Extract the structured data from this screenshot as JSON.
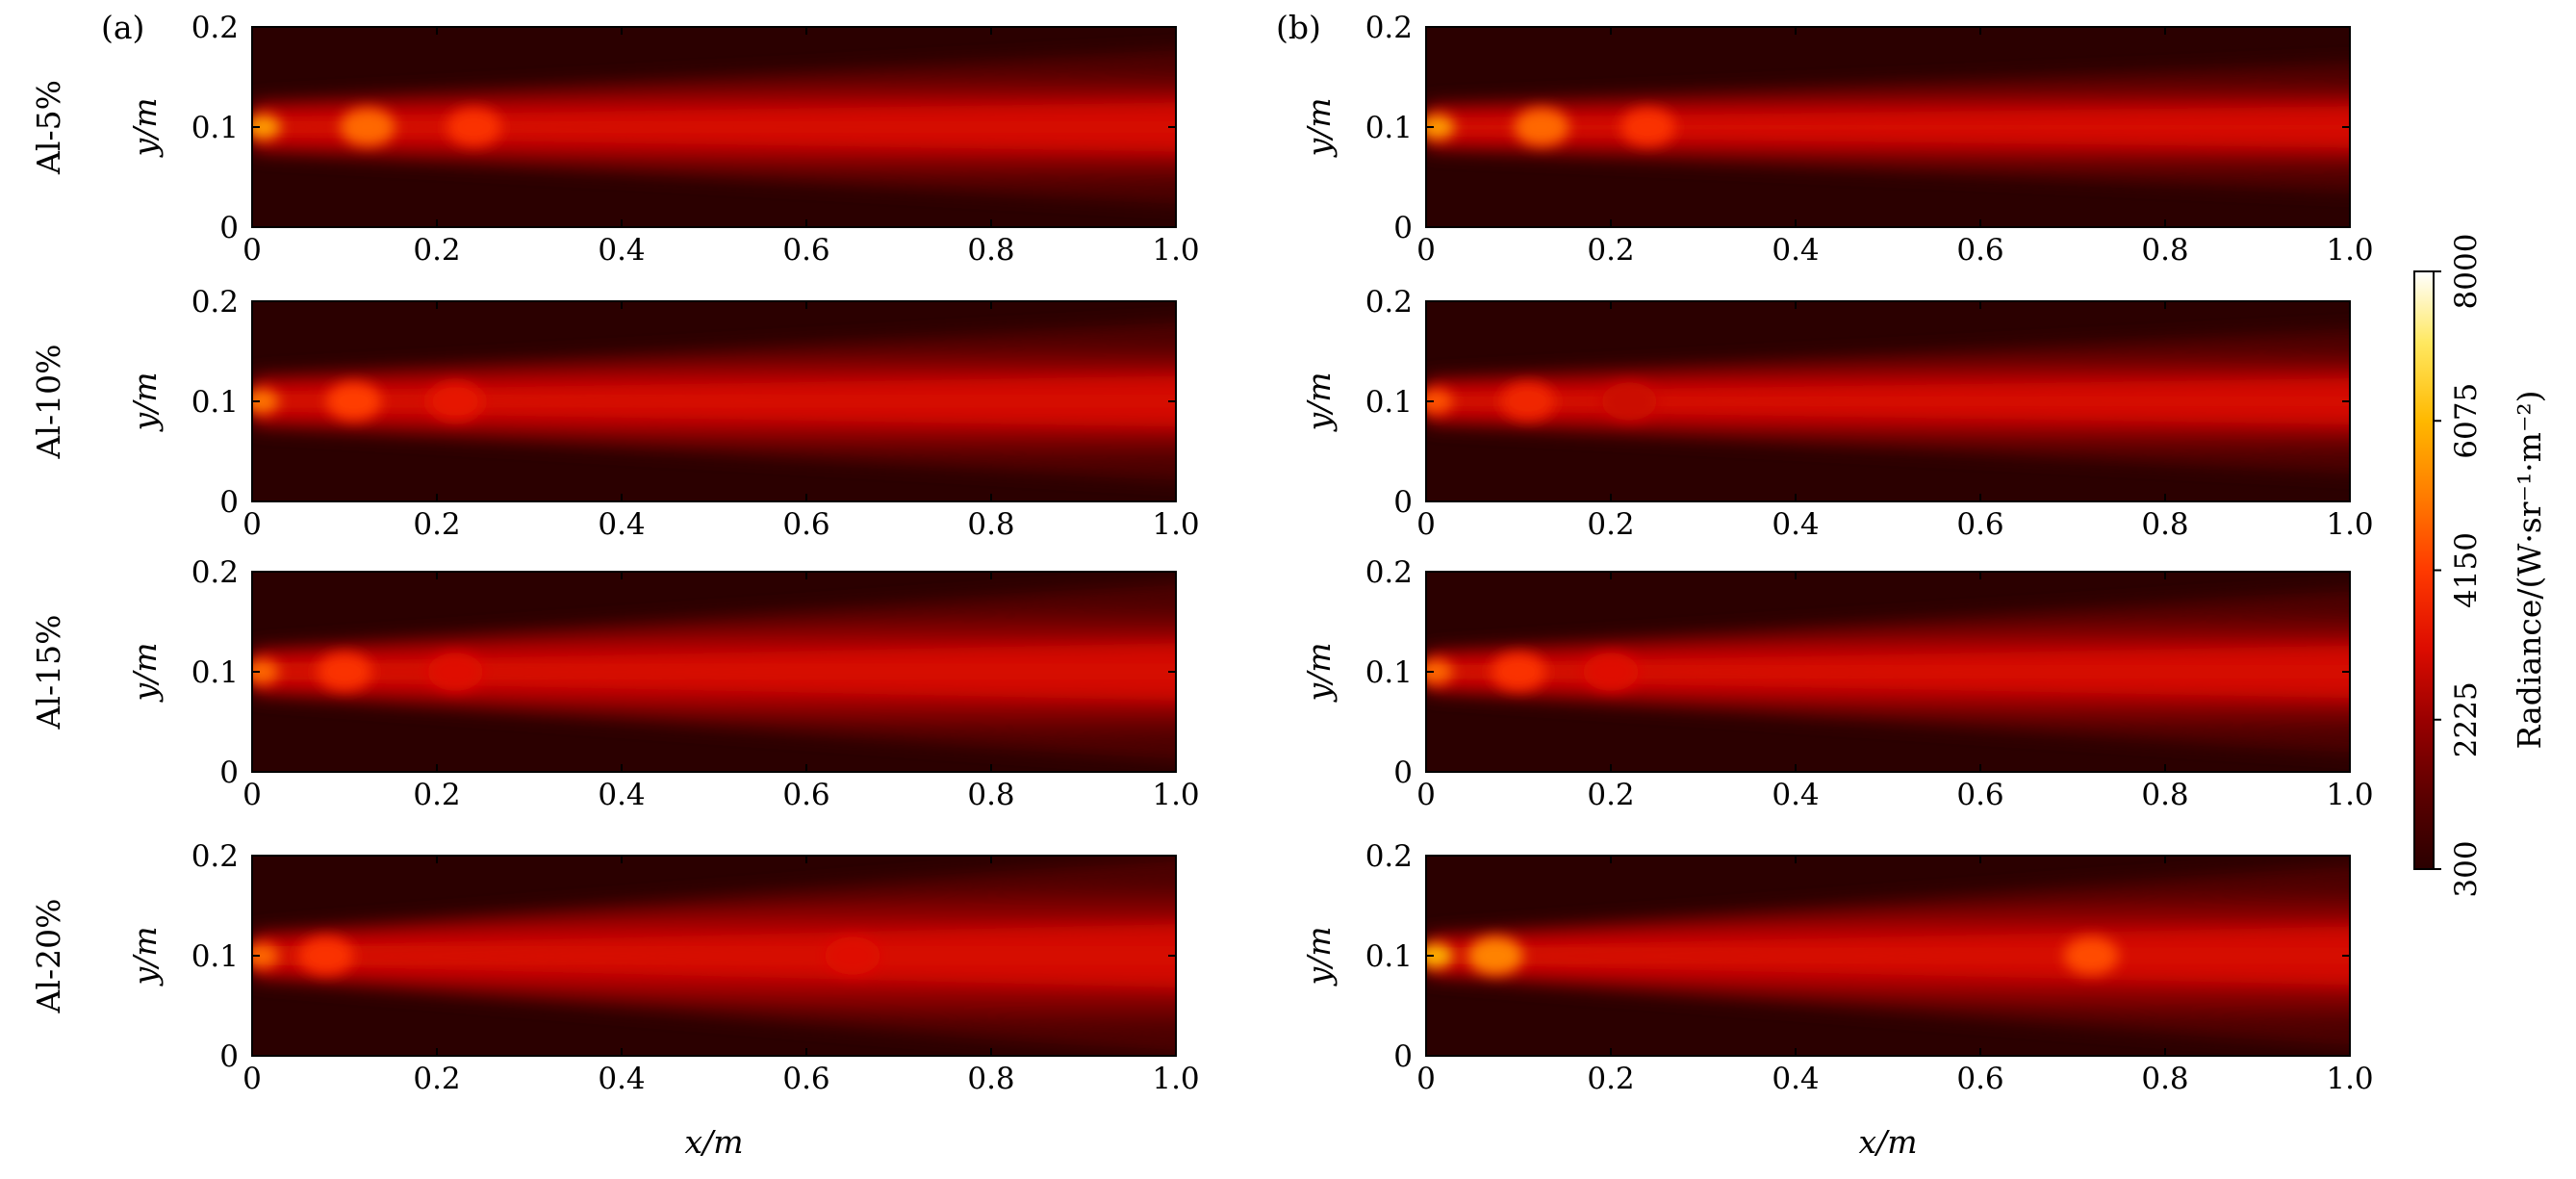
{
  "chart_data": {
    "type": "heatmap",
    "panel_labels": [
      "(a)",
      "(b)"
    ],
    "row_labels": [
      "Al-5%",
      "Al-10%",
      "Al-15%",
      "Al-20%"
    ],
    "xlabel": "x/m",
    "ylabel": "y/m",
    "xlim": [
      0,
      1.0
    ],
    "ylim": [
      0,
      0.2
    ],
    "xticks": [
      "0",
      "0.2",
      "0.4",
      "0.6",
      "0.8",
      "1.0"
    ],
    "yticks": [
      "0",
      "0.1",
      "0.2"
    ],
    "colorbar": {
      "label": "Radiance/(W·sr⁻¹·m⁻²)",
      "min": 300,
      "max": 8000,
      "ticks": [
        "300",
        "2225",
        "4150",
        "6075",
        "8000"
      ],
      "colormap": "hot"
    },
    "panels": [
      {
        "column": "(a)",
        "row": "Al-5%",
        "plume_start_halfwidth_m": 0.022,
        "plume_end_halfwidth_m": 0.062,
        "peak_x_m": [
          0.012,
          0.125,
          0.24
        ],
        "max_radiance": 5600
      },
      {
        "column": "(a)",
        "row": "Al-10%",
        "plume_start_halfwidth_m": 0.022,
        "plume_end_halfwidth_m": 0.064,
        "peak_x_m": [
          0.01,
          0.11,
          0.22
        ],
        "max_radiance": 5000
      },
      {
        "column": "(a)",
        "row": "Al-15%",
        "plume_start_halfwidth_m": 0.02,
        "plume_end_halfwidth_m": 0.072,
        "peak_x_m": [
          0.01,
          0.1,
          0.22
        ],
        "max_radiance": 4800
      },
      {
        "column": "(a)",
        "row": "Al-20%",
        "plume_start_halfwidth_m": 0.02,
        "plume_end_halfwidth_m": 0.08,
        "peak_x_m": [
          0.01,
          0.08,
          0.65
        ],
        "max_radiance": 4800
      },
      {
        "column": "(b)",
        "row": "Al-5%",
        "plume_start_halfwidth_m": 0.02,
        "plume_end_halfwidth_m": 0.052,
        "peak_x_m": [
          0.012,
          0.125,
          0.24
        ],
        "max_radiance": 5600
      },
      {
        "column": "(b)",
        "row": "Al-10%",
        "plume_start_halfwidth_m": 0.02,
        "plume_end_halfwidth_m": 0.058,
        "peak_x_m": [
          0.01,
          0.11,
          0.22
        ],
        "max_radiance": 4500
      },
      {
        "column": "(b)",
        "row": "Al-15%",
        "plume_start_halfwidth_m": 0.018,
        "plume_end_halfwidth_m": 0.066,
        "peak_x_m": [
          0.01,
          0.1,
          0.2
        ],
        "max_radiance": 4800
      },
      {
        "column": "(b)",
        "row": "Al-20%",
        "plume_start_halfwidth_m": 0.018,
        "plume_end_halfwidth_m": 0.074,
        "peak_x_m": [
          0.01,
          0.075,
          0.72
        ],
        "max_radiance": 6000
      }
    ]
  }
}
